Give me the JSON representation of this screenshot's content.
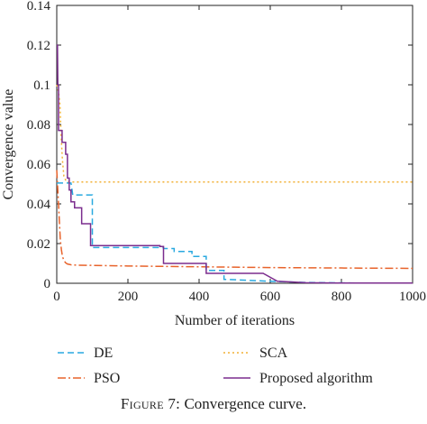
{
  "caption": {
    "label": "Figure 7:",
    "text": "Convergence curve."
  },
  "chart_data": {
    "type": "line",
    "xlabel": "Number of iterations",
    "ylabel": "Convergence value",
    "xlim": [
      0,
      1000
    ],
    "ylim": [
      0,
      0.14
    ],
    "xticks": [
      0,
      200,
      400,
      600,
      800,
      1000
    ],
    "yticks": [
      0,
      0.02,
      0.04,
      0.06,
      0.08,
      0.1,
      0.12,
      0.14
    ],
    "xtick_labels": [
      "0",
      "200",
      "400",
      "600",
      "800",
      "1000"
    ],
    "ytick_labels": [
      "0",
      "0.02",
      "0.04",
      "0.06",
      "0.08",
      "0.1",
      "0.12",
      "0.14"
    ],
    "grid": false,
    "legend_position": "below",
    "series": [
      {
        "name": "DE",
        "color": "#29a9e0",
        "dash": "7,4",
        "x": [
          0,
          1,
          5,
          10,
          15,
          20,
          25,
          30,
          35,
          40,
          45,
          100,
          100,
          300,
          300,
          330,
          330,
          380,
          380,
          420,
          420,
          470,
          470,
          600,
          700,
          850,
          1000
        ],
        "y": [
          0.0505,
          0.0505,
          0.0505,
          0.0505,
          0.0505,
          0.0505,
          0.0505,
          0.0505,
          0.0505,
          0.0505,
          0.0445,
          0.0445,
          0.018,
          0.018,
          0.0175,
          0.0175,
          0.016,
          0.016,
          0.0135,
          0.0135,
          0.0065,
          0.0065,
          0.002,
          0.001,
          0.0004,
          0.0001,
          0.0001
        ]
      },
      {
        "name": "PSO",
        "color": "#e8632b",
        "dash": "9,3,2,3",
        "x": [
          0,
          2,
          5,
          8,
          10,
          13,
          16,
          20,
          25,
          30,
          40,
          60,
          100,
          200,
          300,
          400,
          500,
          600,
          700,
          800,
          900,
          1000
        ],
        "y": [
          0.057,
          0.05,
          0.04,
          0.029,
          0.022,
          0.017,
          0.0135,
          0.0115,
          0.0103,
          0.0097,
          0.0093,
          0.0091,
          0.009,
          0.0087,
          0.0085,
          0.0083,
          0.0081,
          0.0079,
          0.0078,
          0.0077,
          0.0076,
          0.0075
        ]
      },
      {
        "name": "SCA",
        "color": "#f2b035",
        "dash": "2,3",
        "x": [
          0,
          3,
          6,
          9,
          12,
          16,
          20,
          25,
          30,
          100,
          200,
          400,
          600,
          800,
          1000
        ],
        "y": [
          0.1,
          0.098,
          0.095,
          0.09,
          0.075,
          0.062,
          0.054,
          0.052,
          0.051,
          0.051,
          0.051,
          0.051,
          0.051,
          0.051,
          0.051
        ]
      },
      {
        "name": "Proposed algorithm",
        "color": "#7b2d8e",
        "dash": "",
        "x": [
          0,
          2,
          3,
          5,
          5,
          15,
          15,
          25,
          25,
          30,
          30,
          35,
          35,
          40,
          40,
          50,
          50,
          70,
          70,
          95,
          95,
          290,
          290,
          300,
          300,
          420,
          420,
          580,
          620,
          700,
          800,
          1000
        ],
        "y": [
          0.12,
          0.12,
          0.1,
          0.1,
          0.077,
          0.077,
          0.071,
          0.071,
          0.065,
          0.065,
          0.053,
          0.053,
          0.047,
          0.047,
          0.041,
          0.041,
          0.038,
          0.038,
          0.03,
          0.03,
          0.019,
          0.019,
          0.0185,
          0.0185,
          0.01,
          0.01,
          0.005,
          0.005,
          0.001,
          0.0003,
          0.0001,
          0.0001
        ]
      }
    ]
  }
}
